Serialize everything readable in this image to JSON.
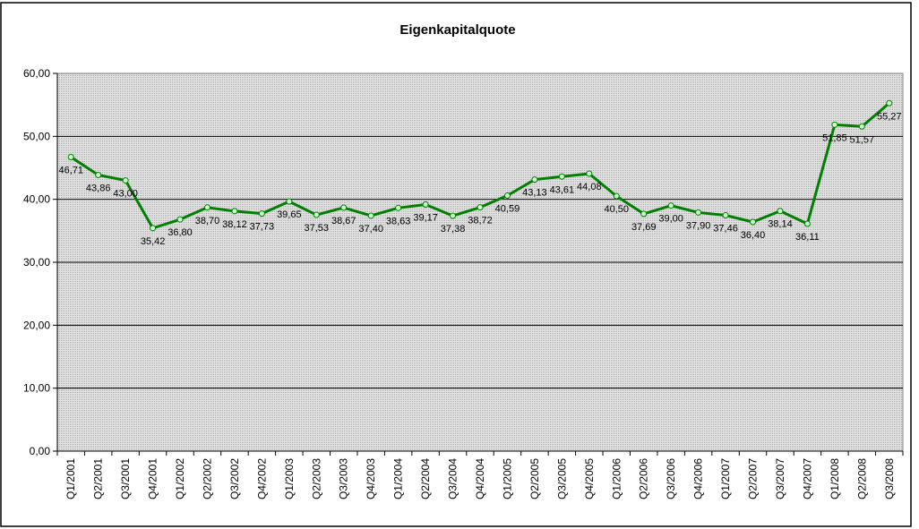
{
  "chart_data": {
    "type": "line",
    "title": "Eigenkapitalquote",
    "xlabel": "",
    "ylabel": "",
    "ylim": [
      0,
      60
    ],
    "yticks": [
      "0,00",
      "10,00",
      "20,00",
      "30,00",
      "40,00",
      "50,00",
      "60,00"
    ],
    "grid": true,
    "legend": "none",
    "categories": [
      "Q1/2001",
      "Q2/2001",
      "Q3/2001",
      "Q4/2001",
      "Q1/2002",
      "Q2/2002",
      "Q3/2002",
      "Q4/2002",
      "Q1/2003",
      "Q2/2003",
      "Q3/2003",
      "Q4/2003",
      "Q1/2004",
      "Q2/2004",
      "Q3/2004",
      "Q4/2004",
      "Q1/2005",
      "Q2/2005",
      "Q3/2005",
      "Q4/2005",
      "Q1/2006",
      "Q2/2006",
      "Q3/2006",
      "Q4/2006",
      "Q1/2007",
      "Q2/2007",
      "Q3/2007",
      "Q4/2007",
      "Q1/2008",
      "Q2/2008",
      "Q3/2008"
    ],
    "series": [
      {
        "name": "Eigenkapitalquote",
        "color": "#008000",
        "values": [
          46.71,
          43.86,
          43.0,
          35.42,
          36.8,
          38.7,
          38.12,
          37.73,
          39.65,
          37.53,
          38.67,
          37.4,
          38.63,
          39.17,
          37.38,
          38.72,
          40.59,
          43.13,
          43.61,
          44.08,
          40.5,
          37.69,
          39.0,
          37.9,
          37.46,
          36.4,
          38.14,
          36.11,
          51.85,
          51.57,
          55.27
        ],
        "labels": [
          "46,71",
          "43,86",
          "43,00",
          "35,42",
          "36,80",
          "38,70",
          "38,12",
          "37,73",
          "39,65",
          "37,53",
          "38,67",
          "37,40",
          "38,63",
          "39,17",
          "37,38",
          "38,72",
          "40,59",
          "43,13",
          "43,61",
          "44,08",
          "40,50",
          "37,69",
          "39,00",
          "37,90",
          "37,46",
          "36,40",
          "38,14",
          "36,11",
          "51,85",
          "51,57",
          "55,27"
        ]
      }
    ]
  }
}
